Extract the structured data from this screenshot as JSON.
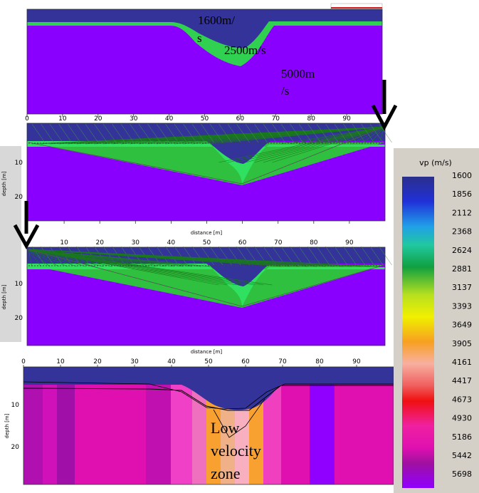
{
  "panels": [
    {
      "annotations": [
        "1600m/",
        "s",
        "2500m/s",
        "5000m",
        "/s"
      ],
      "x_ticks": [
        0,
        10,
        20,
        30,
        40,
        50,
        60,
        70,
        80,
        90
      ]
    },
    {
      "y_label": "depth [m]",
      "y_ticks": [
        10,
        20
      ],
      "x_label": "distance [m]",
      "x_ticks": [
        10,
        20,
        30,
        40,
        50,
        60,
        70,
        80,
        90
      ]
    },
    {
      "y_label": "depth [m]",
      "y_ticks": [
        10,
        20
      ],
      "x_label": "distance [m]",
      "x_ticks": [
        0,
        10,
        20,
        30,
        40,
        50,
        60,
        70,
        80,
        90
      ]
    },
    {
      "y_label": "depth [m]",
      "y_ticks": [
        10,
        20
      ],
      "annotation": [
        "Low",
        "velocity",
        "zone"
      ]
    }
  ],
  "colorbar": {
    "title": "vp (m/s)",
    "labels": [
      1600,
      1856,
      2112,
      2368,
      2624,
      2881,
      3137,
      3393,
      3649,
      3905,
      4161,
      4417,
      4673,
      4930,
      5186,
      5442,
      5698
    ]
  }
}
